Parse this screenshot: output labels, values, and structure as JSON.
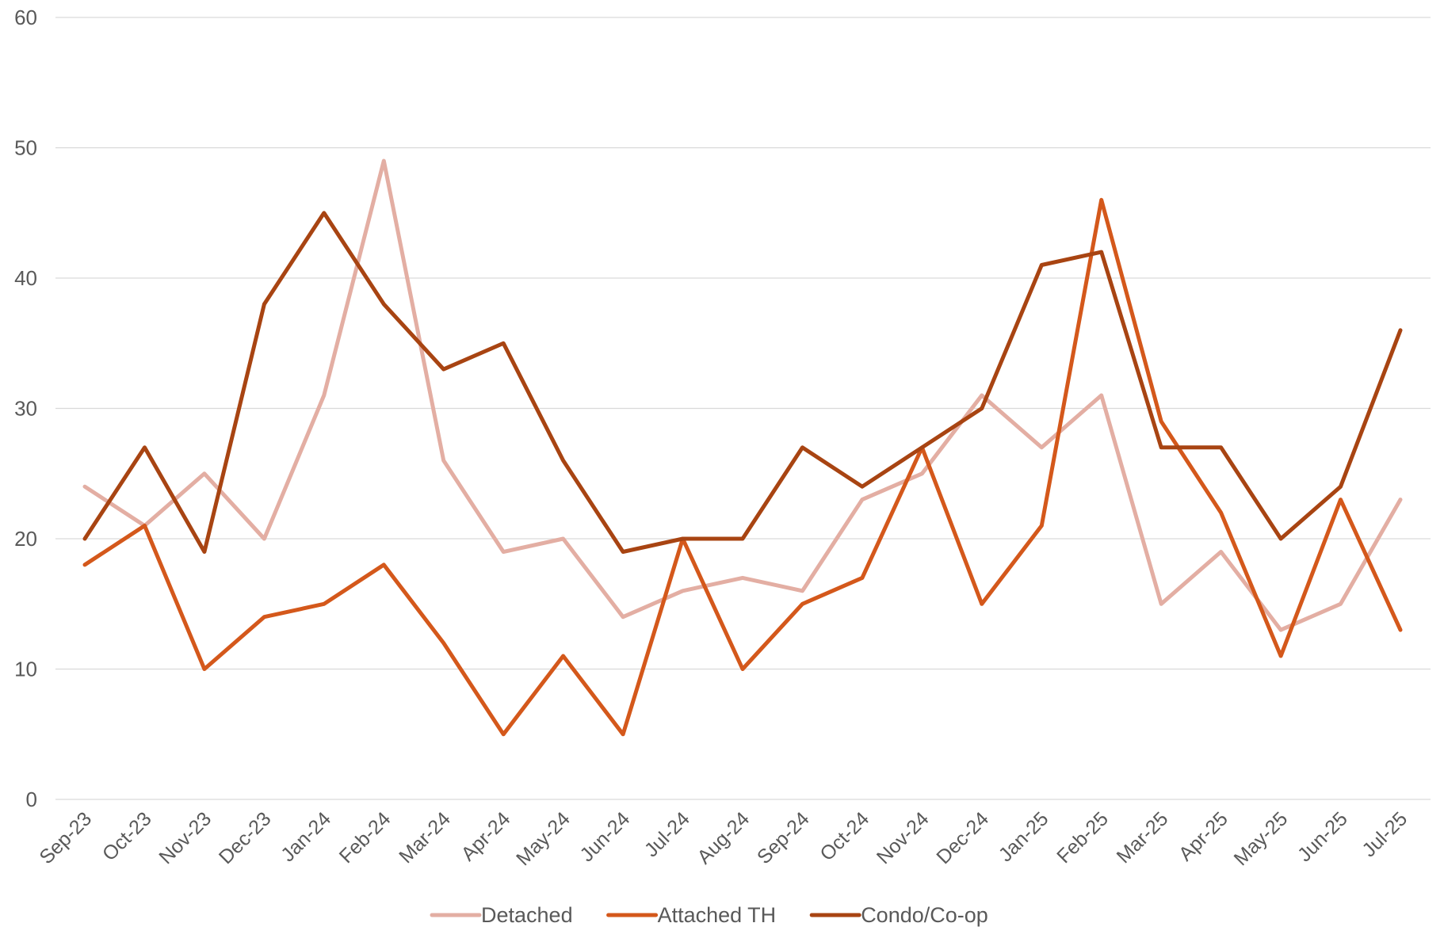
{
  "chart_data": {
    "type": "line",
    "title": "",
    "xlabel": "",
    "ylabel": "",
    "ylim": [
      0,
      60
    ],
    "yticks": [
      0,
      10,
      20,
      30,
      40,
      50,
      60
    ],
    "grid": true,
    "legend_position": "bottom",
    "categories": [
      "Sep-23",
      "Oct-23",
      "Nov-23",
      "Dec-23",
      "Jan-24",
      "Feb-24",
      "Mar-24",
      "Apr-24",
      "May-24",
      "Jun-24",
      "Jul-24",
      "Aug-24",
      "Sep-24",
      "Oct-24",
      "Nov-24",
      "Dec-24",
      "Jan-25",
      "Feb-25",
      "Mar-25",
      "Apr-25",
      "May-25",
      "Jun-25",
      "Jul-25"
    ],
    "series": [
      {
        "name": "Detached",
        "color": "#e3aea3",
        "values": [
          24,
          21,
          25,
          20,
          31,
          49,
          26,
          19,
          20,
          14,
          16,
          17,
          16,
          23,
          25,
          31,
          27,
          31,
          15,
          19,
          13,
          15,
          23
        ]
      },
      {
        "name": "Attached TH",
        "color": "#d4581b",
        "values": [
          18,
          21,
          10,
          14,
          15,
          18,
          12,
          5,
          11,
          5,
          20,
          10,
          15,
          17,
          27,
          15,
          21,
          46,
          29,
          22,
          11,
          23,
          13
        ]
      },
      {
        "name": "Condo/Co-op",
        "color": "#a84412",
        "values": [
          20,
          27,
          19,
          38,
          45,
          38,
          33,
          35,
          26,
          19,
          20,
          20,
          27,
          24,
          27,
          30,
          41,
          42,
          27,
          27,
          20,
          24,
          36
        ]
      }
    ]
  }
}
